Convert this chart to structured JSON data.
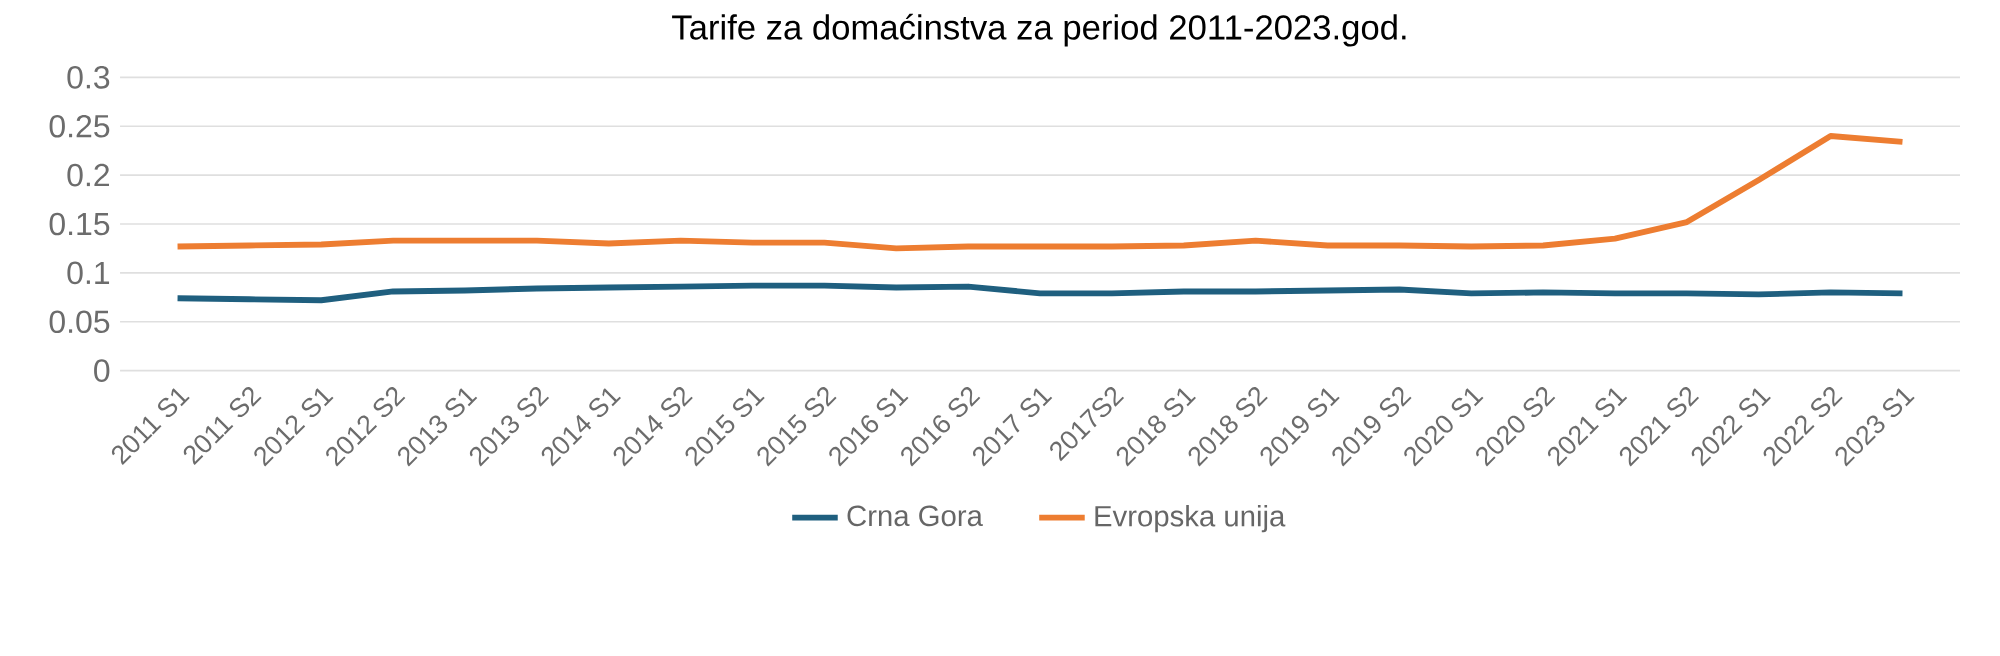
{
  "chart_data": {
    "type": "line",
    "title": "Tarife za domaćinstva za period 2011-2023.god.",
    "categories": [
      "2011 S1",
      "2011 S2",
      "2012 S1",
      "2012 S2",
      "2013 S1",
      "2013 S2",
      "2014 S1",
      "2014 S2",
      "2015 S1",
      "2015 S2",
      "2016 S1",
      "2016 S2",
      "2017 S1",
      "2017S2",
      "2018 S1",
      "2018 S2",
      "2019 S1",
      "2019 S2",
      "2020 S1",
      "2020 S2",
      "2021 S1",
      "2021 S2",
      "2022 S1",
      "2022 S2",
      "2023 S1"
    ],
    "series": [
      {
        "name": "Crna Gora",
        "color": "#1f5f7f",
        "values": [
          0.074,
          0.073,
          0.072,
          0.081,
          0.082,
          0.084,
          0.085,
          0.086,
          0.087,
          0.087,
          0.085,
          0.086,
          0.079,
          0.079,
          0.081,
          0.081,
          0.082,
          0.083,
          0.079,
          0.08,
          0.079,
          0.079,
          0.078,
          0.08,
          0.079
        ]
      },
      {
        "name": "Evropska unija",
        "color": "#ed7d31",
        "values": [
          0.127,
          0.128,
          0.129,
          0.133,
          0.133,
          0.133,
          0.13,
          0.133,
          0.131,
          0.131,
          0.125,
          0.127,
          0.127,
          0.127,
          0.128,
          0.133,
          0.128,
          0.128,
          0.127,
          0.128,
          0.135,
          0.152,
          0.195,
          0.24,
          0.234
        ]
      }
    ],
    "ylim": [
      0,
      0.3
    ],
    "yticks": [
      0,
      0.05,
      0.1,
      0.15,
      0.2,
      0.25,
      0.3
    ],
    "grid": "y",
    "legend": "bottom",
    "marker": "none",
    "line_style": "solid"
  }
}
